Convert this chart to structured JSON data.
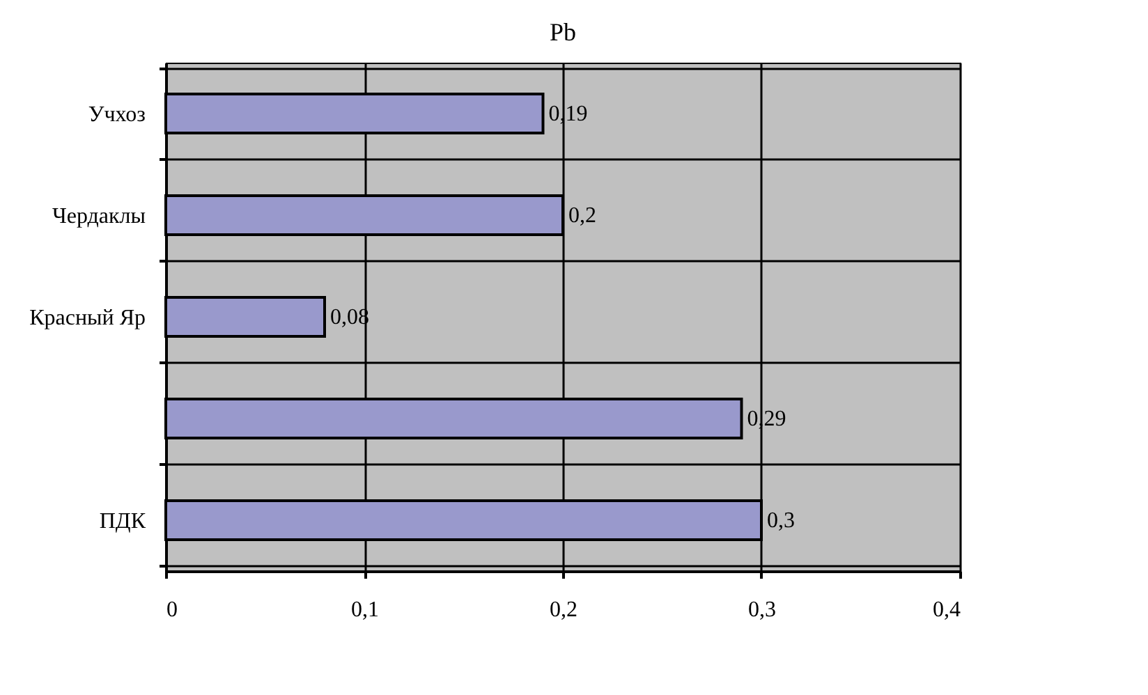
{
  "chart_data": {
    "type": "bar",
    "orientation": "horizontal",
    "title": "Pb",
    "categories": [
      "Учхоз",
      "Чердаклы",
      "Красный Яр",
      null,
      "ПДК"
    ],
    "values": [
      0.19,
      0.2,
      0.08,
      0.29,
      0.3
    ],
    "value_labels": [
      "0,19",
      "0,2",
      "0,08",
      "0,29",
      "0,3"
    ],
    "color": "#9999cc",
    "xlim": [
      0,
      0.4
    ],
    "xticks": [
      {
        "value": 0,
        "label": "0"
      },
      {
        "value": 0.1,
        "label": "0,1"
      },
      {
        "value": 0.2,
        "label": "0,2"
      },
      {
        "value": 0.3,
        "label": "0,3"
      },
      {
        "value": 0.4,
        "label": "0,4"
      }
    ],
    "grid": true
  }
}
